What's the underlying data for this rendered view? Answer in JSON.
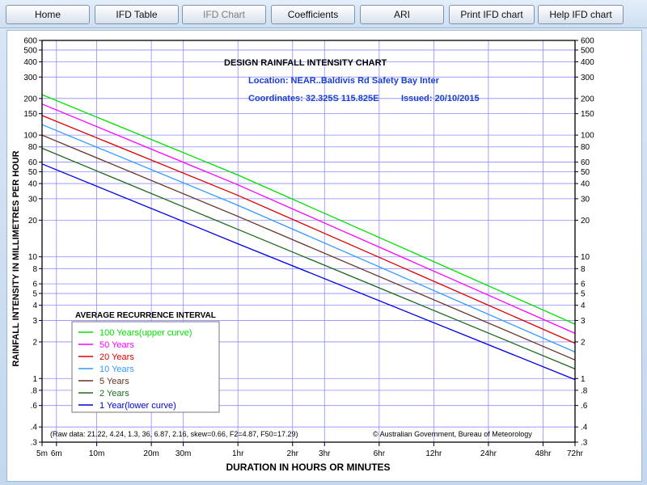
{
  "nav": {
    "home": "Home",
    "ifd_table": "IFD Table",
    "ifd_chart": "IFD Chart",
    "coefficients": "Coefficients",
    "ari": "ARI",
    "print_ifd_chart": "Print IFD chart",
    "help_ifd_chart": "Help IFD chart"
  },
  "chart_data": {
    "type": "line",
    "title": "DESIGN RAINFALL INTENSITY CHART",
    "location": "Location:  NEAR..Baldivis Rd Safety Bay Inter",
    "coordinates": "Coordinates: 32.325S  115.825E",
    "issued": "Issued: 20/10/2015",
    "xlabel": "DURATION IN HOURS OR MINUTES",
    "ylabel": "RAINFALL INTENSITY IN MILLIMETRES PER HOUR",
    "x_scale": "log",
    "y_scale": "log",
    "x_unit": "hours",
    "xlim": [
      0.0833,
      72
    ],
    "ylim": [
      0.3,
      600
    ],
    "x_ticks": [
      {
        "value": 0.0833,
        "label": "5m"
      },
      {
        "value": 0.1,
        "label": "6m"
      },
      {
        "value": 0.1667,
        "label": "10m"
      },
      {
        "value": 0.3333,
        "label": "20m"
      },
      {
        "value": 0.5,
        "label": "30m"
      },
      {
        "value": 1,
        "label": "1hr"
      },
      {
        "value": 2,
        "label": "2hr"
      },
      {
        "value": 3,
        "label": "3hr"
      },
      {
        "value": 6,
        "label": "6hr"
      },
      {
        "value": 12,
        "label": "12hr"
      },
      {
        "value": 24,
        "label": "24hr"
      },
      {
        "value": 48,
        "label": "48hr"
      },
      {
        "value": 72,
        "label": "72hr"
      }
    ],
    "y_ticks": [
      {
        "value": 600,
        "label": "600"
      },
      {
        "value": 500,
        "label": "500"
      },
      {
        "value": 400,
        "label": "400"
      },
      {
        "value": 300,
        "label": "300"
      },
      {
        "value": 200,
        "label": "200"
      },
      {
        "value": 150,
        "label": "150"
      },
      {
        "value": 100,
        "label": "100"
      },
      {
        "value": 80,
        "label": "80"
      },
      {
        "value": 60,
        "label": "60"
      },
      {
        "value": 50,
        "label": "50"
      },
      {
        "value": 40,
        "label": "40"
      },
      {
        "value": 30,
        "label": "30"
      },
      {
        "value": 20,
        "label": "20"
      },
      {
        "value": 10,
        "label": "10"
      },
      {
        "value": 8,
        "label": "8"
      },
      {
        "value": 6,
        "label": "6"
      },
      {
        "value": 5,
        "label": "5"
      },
      {
        "value": 4,
        "label": "4"
      },
      {
        "value": 3,
        "label": "3"
      },
      {
        "value": 2,
        "label": "2"
      },
      {
        "value": 1,
        "label": "1"
      },
      {
        "value": 0.8,
        "label": ".8"
      },
      {
        "value": 0.6,
        "label": ".6"
      },
      {
        "value": 0.4,
        "label": ".4"
      },
      {
        "value": 0.3,
        "label": ".3"
      }
    ],
    "legend_title": "AVERAGE RECURRENCE INTERVAL",
    "legend_position": "bottom-left",
    "grid": true,
    "series": [
      {
        "name": "100 Years(upper curve)",
        "color": "#00e000",
        "x": [
          0.0833,
          1,
          72
        ],
        "y": [
          215,
          47,
          2.8
        ]
      },
      {
        "name": "50 Years",
        "color": "#ff00ff",
        "x": [
          0.0833,
          1,
          72
        ],
        "y": [
          180,
          39,
          2.35
        ]
      },
      {
        "name": "20 Years",
        "color": "#e00000",
        "x": [
          0.0833,
          1,
          72
        ],
        "y": [
          145,
          32,
          1.95
        ]
      },
      {
        "name": "10 Years",
        "color": "#3399ff",
        "x": [
          0.0833,
          1,
          72
        ],
        "y": [
          122,
          26.5,
          1.65
        ]
      },
      {
        "name": "5 Years",
        "color": "#663322",
        "x": [
          0.0833,
          1,
          72
        ],
        "y": [
          100,
          21.5,
          1.42
        ]
      },
      {
        "name": "2 Years",
        "color": "#1f6b1f",
        "x": [
          0.0833,
          1,
          72
        ],
        "y": [
          78,
          16.8,
          1.2
        ]
      },
      {
        "name": "1 Year(lower curve)",
        "color": "#0000e0",
        "x": [
          0.0833,
          1,
          72
        ],
        "y": [
          58,
          12.8,
          0.98
        ]
      }
    ],
    "raw_data": "(Raw data: 21.22, 4.24, 1.3, 36, 6.87, 2.16, skew=0.66, F2=4.87, F50=17.29)",
    "copyright": "© Australian Government, Bureau of Meteorology"
  }
}
